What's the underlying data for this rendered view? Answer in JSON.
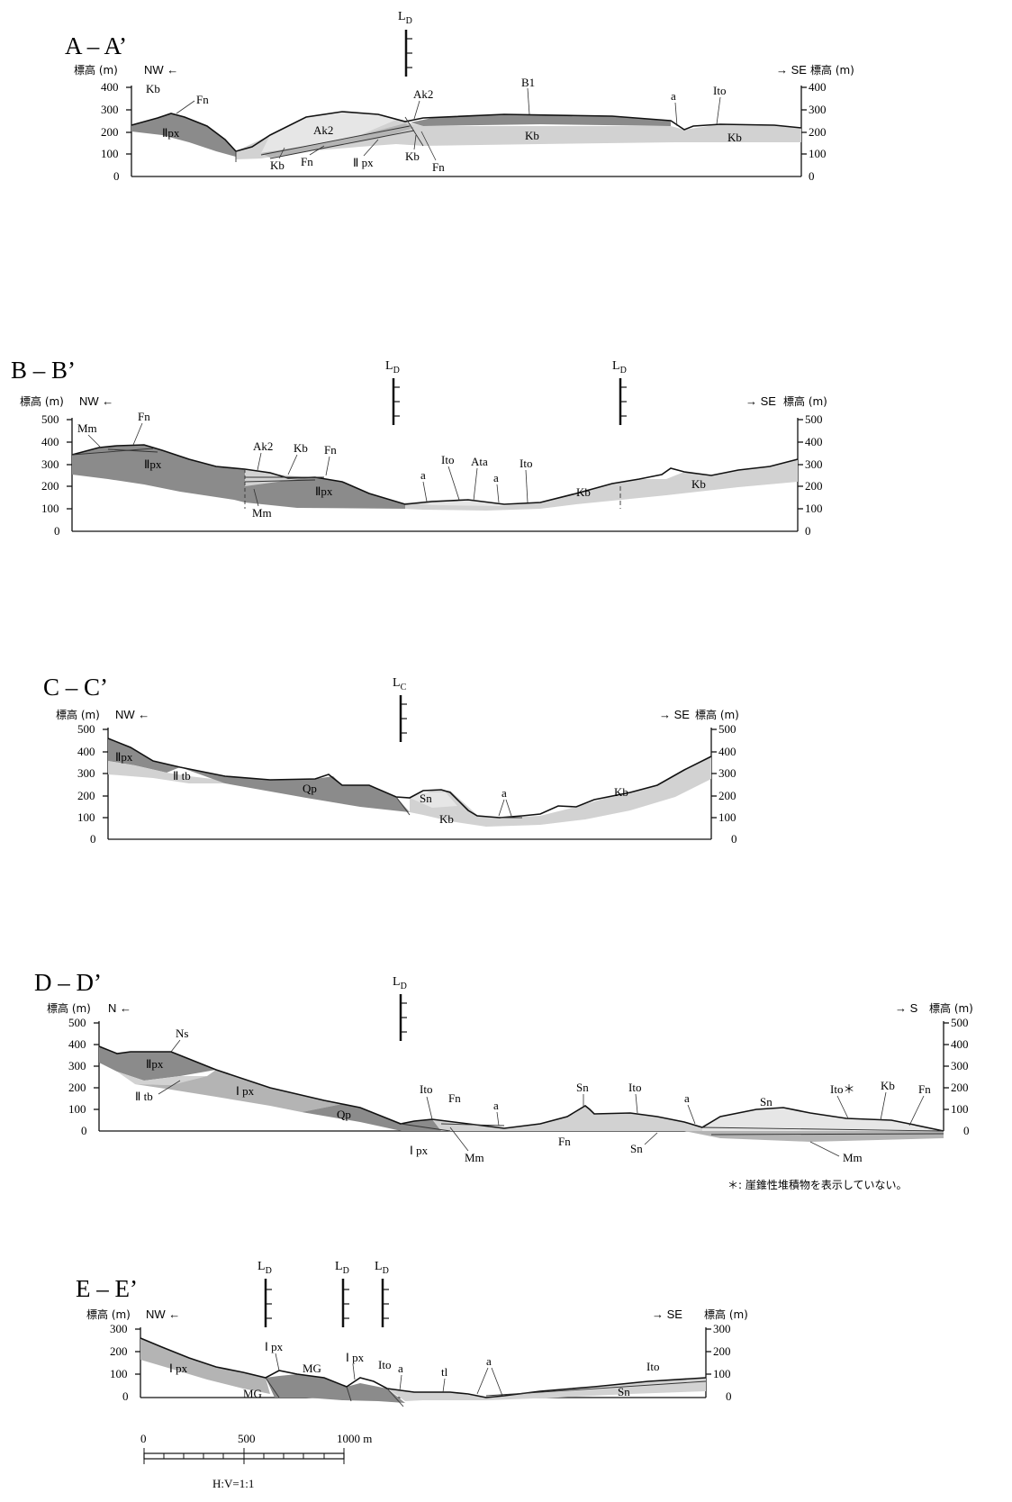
{
  "figure": {
    "note": "＊: 崖錐性堆積物を表示していない。",
    "scale_bar": {
      "ticks": [
        "0",
        "500",
        "1000 m"
      ],
      "ratio": "H:V=1:1"
    }
  },
  "sections": {
    "aa": {
      "title": "A – A’",
      "left_axis": "標高 (m)",
      "right_axis": "標高 (m)",
      "left_dir": "NW ←",
      "right_dir": "→ SE",
      "ticks": [
        "400",
        "300",
        "200",
        "100",
        "0"
      ],
      "markers": [
        "L",
        "D"
      ],
      "units": {
        "kb1": "Kb",
        "fn1": "Fn",
        "ipx1": "Ⅱpx",
        "ak2a": "Ak2",
        "ak2b": "Ak2",
        "b1": "B1",
        "a1": "a",
        "ito1": "Ito",
        "kb2": "Kb",
        "fn2": "Fn",
        "ipx2": "Ⅱ px",
        "kb3": "Kb",
        "fn3": "Fn",
        "kb4": "Kb",
        "kb5": "Kb"
      }
    },
    "bb": {
      "title": "B – B’",
      "left_axis": "標高 (m)",
      "right_axis": "標高 (m)",
      "left_dir": "NW ←",
      "right_dir": "→ SE",
      "ticks": [
        "500",
        "400",
        "300",
        "200",
        "100",
        "0"
      ],
      "markers": [
        "L",
        "D"
      ],
      "units": {
        "mm1": "Mm",
        "fn1": "Fn",
        "ipx1": "Ⅱpx",
        "ak2": "Ak2",
        "kb1": "Kb",
        "fn2": "Fn",
        "ipx2": "Ⅱpx",
        "mm2": "Mm",
        "a1": "a",
        "ito1": "Ito",
        "ata": "Ata",
        "a2": "a",
        "ito2": "Ito",
        "kb2": "Kb",
        "kb3": "Kb"
      }
    },
    "cc": {
      "title": "C – C’",
      "left_axis": "標高 (m)",
      "right_axis": "標高 (m)",
      "left_dir": "NW ←",
      "right_dir": "→ SE",
      "ticks": [
        "500",
        "400",
        "300",
        "200",
        "100",
        "0"
      ],
      "markers": [
        "L",
        "C"
      ],
      "units": {
        "ipx": "Ⅱpx",
        "itb": "Ⅱ tb",
        "qp": "Qp",
        "sn": "Sn",
        "kb1": "Kb",
        "a": "a",
        "kb2": "Kb"
      }
    },
    "dd": {
      "title": "D – D’",
      "left_axis": "標高 (m)",
      "right_axis": "標高 (m)",
      "left_dir": "N ←",
      "right_dir": "→ S",
      "ticks": [
        "500",
        "400",
        "300",
        "200",
        "100",
        "0"
      ],
      "markers": [
        "L",
        "D"
      ],
      "units": {
        "ns": "Ns",
        "ipx2": "Ⅱpx",
        "itb": "Ⅱ tb",
        "ipx1": "Ⅰ px",
        "qp": "Qp",
        "ipx1b": "Ⅰ px",
        "ito1": "Ito",
        "fn1": "Fn",
        "mm1": "Mm",
        "a1": "a",
        "fn2": "Fn",
        "sn1": "Sn",
        "ito2": "Ito",
        "sn2": "Sn",
        "a2": "a",
        "sn3": "Sn",
        "ito3": "Ito＊",
        "kb": "Kb",
        "fn3": "Fn",
        "mm2": "Mm"
      }
    },
    "ee": {
      "title": "E – E’",
      "left_axis": "標高 (m)",
      "right_axis": "標高 (m)",
      "left_dir": "NW ←",
      "right_dir": "→ SE",
      "ticks": [
        "300",
        "200",
        "100",
        "0"
      ],
      "markers": [
        "L",
        "D"
      ],
      "units": {
        "ipx1": "Ⅰ px",
        "ipx2": "Ⅰ px",
        "mg1": "MG",
        "mg2": "MG",
        "ipx3": "Ⅰ px",
        "ito1": "Ito",
        "a1": "a",
        "tl": "tl",
        "a2": "a",
        "ito2": "Ito",
        "sn": "Sn"
      }
    }
  }
}
